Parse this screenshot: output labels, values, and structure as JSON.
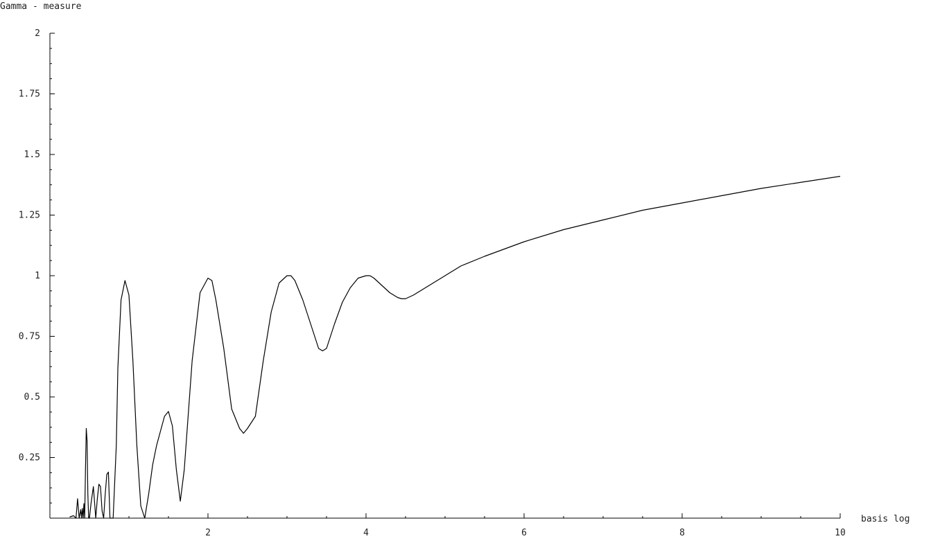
{
  "chart_data": {
    "type": "line",
    "title": "",
    "xlabel": "basis log",
    "ylabel": "Gamma - measure",
    "xlim": [
      0,
      10
    ],
    "ylim": [
      0,
      2
    ],
    "x_ticks": [
      {
        "value": 2,
        "label": "2"
      },
      {
        "value": 4,
        "label": "4"
      },
      {
        "value": 6,
        "label": "6"
      },
      {
        "value": 8,
        "label": "8"
      },
      {
        "value": 10,
        "label": "10"
      }
    ],
    "y_ticks": [
      {
        "value": 0.25,
        "label": "0.25"
      },
      {
        "value": 0.5,
        "label": "0.5"
      },
      {
        "value": 0.75,
        "label": "0.75"
      },
      {
        "value": 1,
        "label": "1"
      },
      {
        "value": 1.25,
        "label": "1.25"
      },
      {
        "value": 1.5,
        "label": "1.5"
      },
      {
        "value": 1.75,
        "label": "1.75"
      },
      {
        "value": 2,
        "label": "2"
      }
    ],
    "x_minor_step": 0.5,
    "y_minor_step": 0.0625,
    "grid": false,
    "legend": "none",
    "series": [
      {
        "color": "#000000",
        "x": [
          0.25,
          0.3,
          0.33,
          0.35,
          0.37,
          0.39,
          0.4,
          0.41,
          0.42,
          0.43,
          0.44,
          0.45,
          0.46,
          0.47,
          0.48,
          0.49,
          0.5,
          0.52,
          0.55,
          0.58,
          0.6,
          0.62,
          0.64,
          0.66,
          0.68,
          0.7,
          0.72,
          0.74,
          0.76,
          0.8,
          0.84,
          0.86,
          0.9,
          0.95,
          1.0,
          1.05,
          1.1,
          1.15,
          1.2,
          1.25,
          1.3,
          1.35,
          1.4,
          1.45,
          1.5,
          1.55,
          1.6,
          1.65,
          1.7,
          1.8,
          1.9,
          2.0,
          2.05,
          2.1,
          2.2,
          2.3,
          2.4,
          2.45,
          2.5,
          2.6,
          2.7,
          2.8,
          2.9,
          3.0,
          3.05,
          3.1,
          3.2,
          3.3,
          3.4,
          3.45,
          3.5,
          3.6,
          3.7,
          3.8,
          3.9,
          4.0,
          4.05,
          4.1,
          4.2,
          4.3,
          4.4,
          4.45,
          4.5,
          4.6,
          4.8,
          5.0,
          5.2,
          5.5,
          6.0,
          6.5,
          7.0,
          7.5,
          8.0,
          8.5,
          9.0,
          9.5,
          10.0
        ],
        "y": [
          0.005,
          0.01,
          0.0,
          0.08,
          0.0,
          0.035,
          0.0,
          0.04,
          0.0,
          0.06,
          0.0,
          0.2,
          0.37,
          0.32,
          0.1,
          0.0,
          0.0,
          0.06,
          0.13,
          0.0,
          0.08,
          0.14,
          0.13,
          0.03,
          0.0,
          0.1,
          0.18,
          0.19,
          0.0,
          0.0,
          0.3,
          0.62,
          0.9,
          0.98,
          0.92,
          0.65,
          0.3,
          0.05,
          0.0,
          0.1,
          0.22,
          0.3,
          0.36,
          0.42,
          0.44,
          0.38,
          0.2,
          0.07,
          0.2,
          0.65,
          0.93,
          0.99,
          0.98,
          0.9,
          0.7,
          0.45,
          0.37,
          0.35,
          0.37,
          0.42,
          0.65,
          0.85,
          0.97,
          1.0,
          1.0,
          0.98,
          0.9,
          0.8,
          0.7,
          0.69,
          0.7,
          0.8,
          0.89,
          0.95,
          0.99,
          1.0,
          1.0,
          0.99,
          0.96,
          0.93,
          0.91,
          0.905,
          0.905,
          0.92,
          0.96,
          1.0,
          1.04,
          1.08,
          1.14,
          1.19,
          1.23,
          1.27,
          1.3,
          1.33,
          1.36,
          1.385,
          1.41
        ]
      }
    ]
  }
}
